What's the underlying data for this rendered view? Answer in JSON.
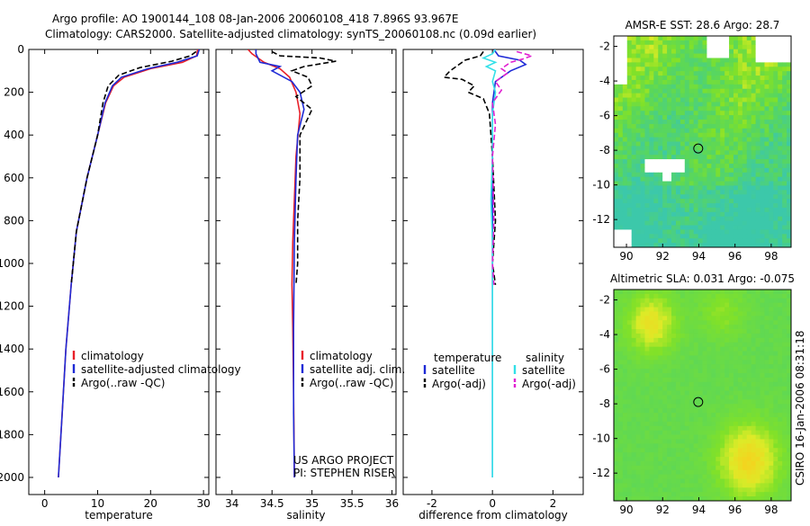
{
  "header": {
    "line1": "Argo profile: AO 1900144_108 08-Jan-2006 20060108_418 7.896S 93.967E",
    "line2": "Climatology: CARS2000. Satellite-adjusted climatology: synTS_20060108.nc (0.09d earlier)"
  },
  "side_label": "CSIRO 16-Jan-2006 08:31:18",
  "colors": {
    "red": "#e8202a",
    "blue": "#1f2bd6",
    "black": "#000000",
    "cyan": "#33e0e8",
    "magenta": "#e020d0"
  },
  "chart_data": [
    {
      "type": "line",
      "id": "temperature",
      "xlabel": "temperature",
      "ylabel": "",
      "xlim": [
        -3,
        31
      ],
      "ylim": [
        2080,
        0
      ],
      "xticks": [
        0,
        10,
        20,
        30
      ],
      "yticks": [
        0,
        200,
        400,
        600,
        800,
        1000,
        1200,
        1400,
        1600,
        1800,
        2000
      ],
      "legend": {
        "placement": "lower-right",
        "entries": [
          "climatology",
          "satellite-adjusted climatology",
          "Argo(..raw -QC)"
        ]
      },
      "series": [
        {
          "name": "climatology",
          "color": "red",
          "dash": false,
          "points": [
            [
              28.9,
              0
            ],
            [
              28.7,
              30
            ],
            [
              26,
              60
            ],
            [
              20,
              90
            ],
            [
              15,
              130
            ],
            [
              13,
              170
            ],
            [
              11.5,
              250
            ],
            [
              10,
              400
            ],
            [
              8,
              600
            ],
            [
              6,
              850
            ],
            [
              5,
              1100
            ],
            [
              4,
              1400
            ],
            [
              3.3,
              1700
            ],
            [
              2.6,
              2000
            ]
          ]
        },
        {
          "name": "satellite-adjusted climatology",
          "color": "blue",
          "dash": false,
          "points": [
            [
              29.2,
              0
            ],
            [
              28.8,
              30
            ],
            [
              25,
              60
            ],
            [
              19.5,
              90
            ],
            [
              14.5,
              130
            ],
            [
              12.8,
              170
            ],
            [
              11.4,
              250
            ],
            [
              10,
              400
            ],
            [
              8,
              600
            ],
            [
              6,
              850
            ],
            [
              5,
              1100
            ],
            [
              4,
              1400
            ],
            [
              3.3,
              1700
            ],
            [
              2.6,
              2000
            ]
          ]
        },
        {
          "name": "Argo(..raw -QC)",
          "color": "black",
          "dash": true,
          "points": [
            [
              28.6,
              10
            ],
            [
              27.5,
              30
            ],
            [
              24,
              55
            ],
            [
              18,
              85
            ],
            [
              14,
              120
            ],
            [
              12,
              170
            ],
            [
              11,
              250
            ],
            [
              10,
              400
            ],
            [
              8,
              600
            ],
            [
              6,
              850
            ],
            [
              5,
              1100
            ]
          ]
        }
      ]
    },
    {
      "type": "line",
      "id": "salinity",
      "xlabel": "salinity",
      "ylabel": "",
      "xlim": [
        33.8,
        36.05
      ],
      "ylim": [
        2080,
        0
      ],
      "xticks": [
        34,
        34.5,
        35,
        35.5,
        36
      ],
      "yticks": [
        0,
        200,
        400,
        600,
        800,
        1000,
        1200,
        1400,
        1600,
        1800,
        2000
      ],
      "legend": {
        "placement": "lower-right",
        "entries": [
          "climatology",
          "satellite adj. clim.",
          "Argo(..raw -QC)"
        ]
      },
      "annotations": [
        "US ARGO PROJECT",
        "PI: STEPHEN RISER"
      ],
      "series": [
        {
          "name": "climatology",
          "color": "red",
          "dash": false,
          "points": [
            [
              34.2,
              0
            ],
            [
              34.25,
              20
            ],
            [
              34.4,
              60
            ],
            [
              34.6,
              90
            ],
            [
              34.72,
              130
            ],
            [
              34.8,
              200
            ],
            [
              34.85,
              300
            ],
            [
              34.8,
              500
            ],
            [
              34.78,
              700
            ],
            [
              34.76,
              900
            ],
            [
              34.75,
              1100
            ],
            [
              34.76,
              1300
            ],
            [
              34.77,
              1600
            ],
            [
              34.78,
              2000
            ]
          ]
        },
        {
          "name": "satellite adj. clim.",
          "color": "blue",
          "dash": false,
          "points": [
            [
              34.3,
              0
            ],
            [
              34.3,
              20
            ],
            [
              34.35,
              60
            ],
            [
              34.6,
              80
            ],
            [
              34.5,
              100
            ],
            [
              34.75,
              150
            ],
            [
              34.85,
              200
            ],
            [
              34.9,
              280
            ],
            [
              34.82,
              400
            ],
            [
              34.8,
              600
            ],
            [
              34.78,
              900
            ],
            [
              34.77,
              1300
            ],
            [
              34.77,
              1700
            ],
            [
              34.78,
              2000
            ]
          ]
        },
        {
          "name": "Argo(..raw -QC)",
          "color": "black",
          "dash": true,
          "points": [
            [
              34.5,
              10
            ],
            [
              34.6,
              30
            ],
            [
              35.1,
              40
            ],
            [
              35.3,
              55
            ],
            [
              34.9,
              80
            ],
            [
              34.75,
              100
            ],
            [
              34.95,
              130
            ],
            [
              35.0,
              170
            ],
            [
              34.8,
              220
            ],
            [
              35.0,
              280
            ],
            [
              34.85,
              400
            ],
            [
              34.85,
              600
            ],
            [
              34.82,
              800
            ],
            [
              34.82,
              1000
            ],
            [
              34.8,
              1100
            ]
          ]
        }
      ]
    },
    {
      "type": "line",
      "id": "difference",
      "xlabel": "difference from climatology",
      "ylabel": "",
      "xlim": [
        -2.95,
        3
      ],
      "ylim": [
        2080,
        0
      ],
      "xticks": [
        -2,
        0,
        2
      ],
      "yticks": [
        0,
        200,
        400,
        600,
        800,
        1000,
        1200,
        1400,
        1600,
        1800,
        2000
      ],
      "legend": {
        "placement": "lower-right",
        "group_titles": [
          "temperature",
          "salinity"
        ],
        "entries": [
          "satellite",
          "Argo(-adj)",
          "satellite",
          "Argo(-adj)"
        ]
      },
      "series": [
        {
          "name": "satellite",
          "group": "temperature",
          "color": "blue",
          "dash": false,
          "points": [
            [
              0.05,
              0
            ],
            [
              0.2,
              30
            ],
            [
              0.9,
              50
            ],
            [
              1.1,
              70
            ],
            [
              0.6,
              100
            ],
            [
              0.1,
              150
            ],
            [
              0,
              250
            ],
            [
              0,
              400
            ],
            [
              0,
              800
            ],
            [
              0,
              1200
            ],
            [
              0,
              1600
            ],
            [
              0,
              2000
            ]
          ]
        },
        {
          "name": "Argo(-adj)",
          "group": "temperature",
          "color": "black",
          "dash": true,
          "points": [
            [
              -0.3,
              10
            ],
            [
              -0.4,
              30
            ],
            [
              -0.9,
              50
            ],
            [
              -1.2,
              80
            ],
            [
              -1.4,
              100
            ],
            [
              -1.6,
              130
            ],
            [
              -1.0,
              140
            ],
            [
              -0.6,
              170
            ],
            [
              -0.8,
              200
            ],
            [
              -0.3,
              230
            ],
            [
              -0.1,
              300
            ],
            [
              0,
              500
            ],
            [
              0.1,
              800
            ],
            [
              0,
              1000
            ],
            [
              0.1,
              1100
            ]
          ]
        },
        {
          "name": "satellite",
          "group": "salinity",
          "color": "cyan",
          "dash": false,
          "points": [
            [
              0.1,
              0
            ],
            [
              0,
              20
            ],
            [
              -0.3,
              40
            ],
            [
              0.1,
              60
            ],
            [
              -0.2,
              80
            ],
            [
              0.1,
              100
            ],
            [
              0,
              150
            ],
            [
              0.1,
              200
            ],
            [
              0,
              300
            ],
            [
              0,
              500
            ],
            [
              -0.05,
              700
            ],
            [
              0,
              900
            ],
            [
              0,
              1100
            ],
            [
              0,
              1500
            ],
            [
              0,
              2000
            ]
          ]
        },
        {
          "name": "Argo(-adj)",
          "group": "salinity",
          "color": "magenta",
          "dash": true,
          "points": [
            [
              0.8,
              10
            ],
            [
              1.3,
              30
            ],
            [
              1.0,
              45
            ],
            [
              0.6,
              60
            ],
            [
              0.3,
              90
            ],
            [
              0.5,
              110
            ],
            [
              0.1,
              150
            ],
            [
              0.3,
              190
            ],
            [
              0,
              250
            ],
            [
              0.1,
              350
            ],
            [
              0,
              500
            ],
            [
              0.05,
              800
            ],
            [
              0,
              1000
            ],
            [
              0.05,
              1100
            ]
          ]
        }
      ]
    },
    {
      "type": "heatmap",
      "id": "sst-map",
      "title": "AMSR-E SST: 28.6 Argo: 28.7",
      "xlim": [
        89.3,
        99.1
      ],
      "ylim": [
        -13.6,
        -1.4
      ],
      "xticks": [
        90,
        92,
        94,
        96,
        98
      ],
      "yticks": [
        -2,
        -4,
        -6,
        -8,
        -10,
        -12
      ],
      "marker": [
        93.967,
        -7.896
      ]
    },
    {
      "type": "heatmap",
      "id": "sla-map",
      "title": "Altimetric SLA: 0.031 Argo: -0.075",
      "xlim": [
        89.3,
        99.1
      ],
      "ylim": [
        -13.6,
        -1.4
      ],
      "xticks": [
        90,
        92,
        94,
        96,
        98
      ],
      "yticks": [
        -2,
        -4,
        -6,
        -8,
        -10,
        -12
      ],
      "marker": [
        93.967,
        -7.896
      ]
    }
  ]
}
